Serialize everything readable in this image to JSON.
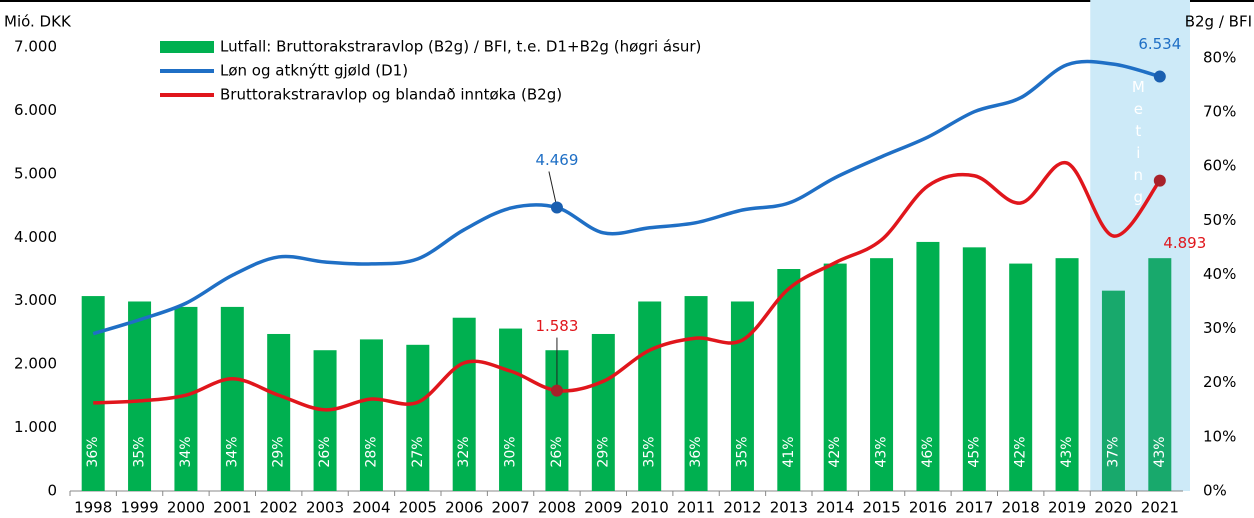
{
  "chart_data": {
    "type": "combo",
    "y_label": "Mió. DKK",
    "y2_label": "B2g / BFI",
    "categories": [
      "1998",
      "1999",
      "2000",
      "2001",
      "2002",
      "2003",
      "2004",
      "2005",
      "2006",
      "2007",
      "2008",
      "2009",
      "2010",
      "2011",
      "2012",
      "2013",
      "2014",
      "2015",
      "2016",
      "2017",
      "2018",
      "2019",
      "2020",
      "2021"
    ],
    "ylim": [
      0,
      7000
    ],
    "yticks": [
      0,
      {
        "value": 1000,
        "label": "1.000"
      },
      {
        "value": 2000,
        "label": "2.000"
      },
      {
        "value": 3000,
        "label": "3.000"
      },
      {
        "value": 4000,
        "label": "4.000"
      },
      {
        "value": 5000,
        "label": "5.000"
      },
      {
        "value": 6000,
        "label": "6.000"
      },
      {
        "value": 7000,
        "label": "7.000"
      }
    ],
    "y2lim": [
      0,
      82
    ],
    "y2ticks": [
      {
        "value": 0,
        "label": "0%"
      },
      {
        "value": 10,
        "label": "10%"
      },
      {
        "value": 20,
        "label": "20%"
      },
      {
        "value": 30,
        "label": "30%"
      },
      {
        "value": 40,
        "label": "40%"
      },
      {
        "value": 50,
        "label": "50%"
      },
      {
        "value": 60,
        "label": "60%"
      },
      {
        "value": 70,
        "label": "70%"
      },
      {
        "value": 80,
        "label": "80%"
      }
    ],
    "shaded_start": "2020",
    "shaded_label": "Meting",
    "shaded_color": "#cdeaf8",
    "series": [
      {
        "name": "Lutfall: Bruttorakstraravlop (B2g) / BFI, t.e. D1+B2g (høgri ásur)",
        "type": "bar",
        "axis": "y2",
        "color": "#00b050",
        "shaded_color": "#18a96c",
        "values": [
          36,
          35,
          34,
          34,
          29,
          26,
          28,
          27,
          32,
          30,
          26,
          29,
          35,
          36,
          35,
          41,
          42,
          43,
          46,
          45,
          42,
          43,
          37,
          43
        ],
        "value_labels": [
          "36%",
          "35%",
          "34%",
          "34%",
          "29%",
          "26%",
          "28%",
          "27%",
          "32%",
          "30%",
          "26%",
          "29%",
          "35%",
          "36%",
          "35%",
          "41%",
          "42%",
          "43%",
          "46%",
          "45%",
          "42%",
          "43%",
          "37%",
          "43%"
        ]
      },
      {
        "name": "Løn og atknýtt gjøld (D1)",
        "type": "line",
        "color": "#1f6fc5",
        "values": [
          2480,
          2700,
          2960,
          3400,
          3690,
          3610,
          3580,
          3660,
          4120,
          4460,
          4469,
          4070,
          4150,
          4230,
          4430,
          4540,
          4940,
          5270,
          5580,
          5980,
          6200,
          6720,
          6730,
          6534
        ],
        "value_labels": [
          null,
          null,
          null,
          null,
          null,
          null,
          null,
          null,
          null,
          null,
          "4.469",
          null,
          null,
          null,
          null,
          null,
          null,
          null,
          null,
          null,
          null,
          null,
          null,
          "6.534"
        ]
      },
      {
        "name": "Bruttorakstraravlop og blandað inntøka (B2g)",
        "type": "line",
        "color": "#e0161c",
        "values": [
          1390,
          1420,
          1510,
          1770,
          1510,
          1280,
          1450,
          1400,
          2020,
          1890,
          1583,
          1730,
          2220,
          2410,
          2380,
          3190,
          3600,
          3960,
          4810,
          4970,
          4540,
          5170,
          4020,
          4893
        ],
        "value_labels": [
          null,
          null,
          null,
          null,
          null,
          null,
          null,
          null,
          null,
          null,
          "1.583",
          null,
          null,
          null,
          null,
          null,
          null,
          null,
          null,
          null,
          null,
          null,
          null,
          "4.893"
        ]
      }
    ]
  }
}
